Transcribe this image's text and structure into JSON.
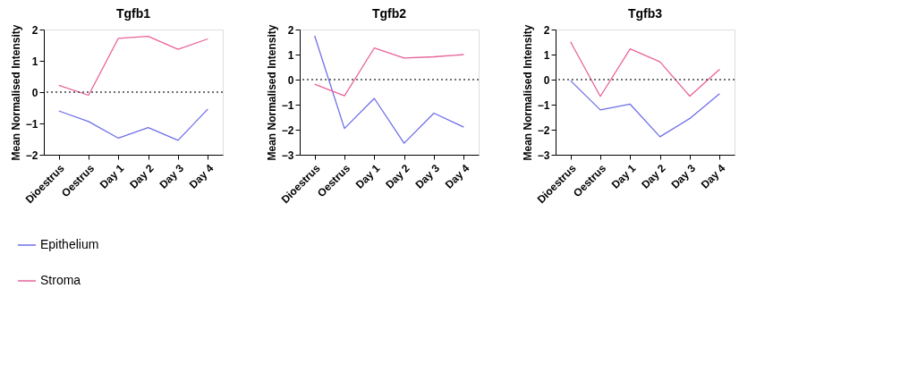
{
  "chart_data": [
    {
      "type": "line",
      "title": "Tgfb1",
      "ylabel": "Mean Normalised Intensity",
      "categories": [
        "Dioestrus",
        "Oestrus",
        "Day 1",
        "Day 2",
        "Day 3",
        "Day 4"
      ],
      "ylim": [
        -2,
        2
      ],
      "yticks": [
        -2,
        -1,
        0,
        1,
        2
      ],
      "grid": false,
      "legend": "bottom",
      "ref_lines": [
        {
          "axis": "y",
          "value": 0,
          "line_style": "dotted",
          "color": "#444444"
        }
      ],
      "series": [
        {
          "name": "Epithelium",
          "color": "#6f6fe8",
          "values": [
            -0.6,
            -0.94,
            -1.47,
            -1.13,
            -1.54,
            -0.54
          ]
        },
        {
          "name": "Stroma",
          "color": "#e8629a",
          "values": [
            0.22,
            -0.1,
            1.72,
            1.78,
            1.37,
            1.7
          ]
        }
      ]
    },
    {
      "type": "line",
      "title": "Tgfb2",
      "ylabel": "Mean Normalised Intensity",
      "categories": [
        "Dioestrus",
        "Oestrus",
        "Day 1",
        "Day 2",
        "Day 3",
        "Day 4"
      ],
      "ylim": [
        -3,
        2
      ],
      "yticks": [
        -3,
        -2,
        -1,
        0,
        1,
        2
      ],
      "grid": false,
      "legend": false,
      "ref_lines": [
        {
          "axis": "y",
          "value": 0,
          "line_style": "dotted",
          "color": "#444444"
        }
      ],
      "series": [
        {
          "color": "#6f6fe8",
          "values": [
            1.75,
            -1.95,
            -0.75,
            -2.54,
            -1.34,
            -1.9
          ]
        },
        {
          "color": "#e8629a",
          "values": [
            -0.18,
            -0.65,
            1.26,
            0.86,
            0.91,
            1.0
          ]
        }
      ]
    },
    {
      "type": "line",
      "title": "Tgfb3",
      "ylabel": "Mean Normalised Intensity",
      "categories": [
        "Dioestrus",
        "Oestrus",
        "Day 1",
        "Day 2",
        "Day 3",
        "Day 4"
      ],
      "ylim": [
        -3,
        2
      ],
      "yticks": [
        -3,
        -2,
        -1,
        0,
        1,
        2
      ],
      "grid": false,
      "legend": false,
      "ref_lines": [
        {
          "axis": "y",
          "value": 0,
          "line_style": "dotted",
          "color": "#444444"
        }
      ],
      "series": [
        {
          "color": "#6f6fe8",
          "values": [
            -0.04,
            -1.21,
            -0.98,
            -2.28,
            -1.55,
            -0.56
          ]
        },
        {
          "color": "#e8629a",
          "values": [
            1.51,
            -0.67,
            1.23,
            0.71,
            -0.66,
            0.41
          ]
        }
      ]
    }
  ]
}
